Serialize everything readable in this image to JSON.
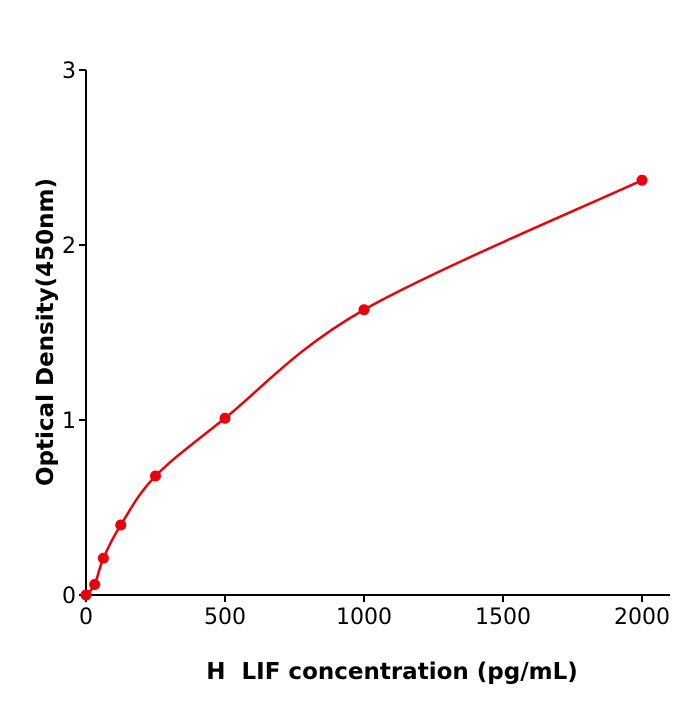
{
  "chart_data": {
    "type": "scatter",
    "title": "",
    "xlabel": "H  LIF concentration (pg/mL)",
    "ylabel": "Optical Density(450nm)",
    "xlim": [
      0,
      2100
    ],
    "ylim": [
      0,
      3
    ],
    "xticks": [
      0,
      500,
      1000,
      1500,
      2000
    ],
    "yticks": [
      0,
      1,
      2,
      3
    ],
    "grid": false,
    "series": [
      {
        "x": [
          0,
          31.25,
          62.5,
          125,
          250,
          500,
          1000,
          2000
        ],
        "y": [
          0.0,
          0.06,
          0.21,
          0.4,
          0.68,
          1.01,
          1.63,
          2.37
        ],
        "fit_curve": true
      }
    ],
    "colors": {
      "series": "#e8000b",
      "axis": "#000000"
    }
  }
}
